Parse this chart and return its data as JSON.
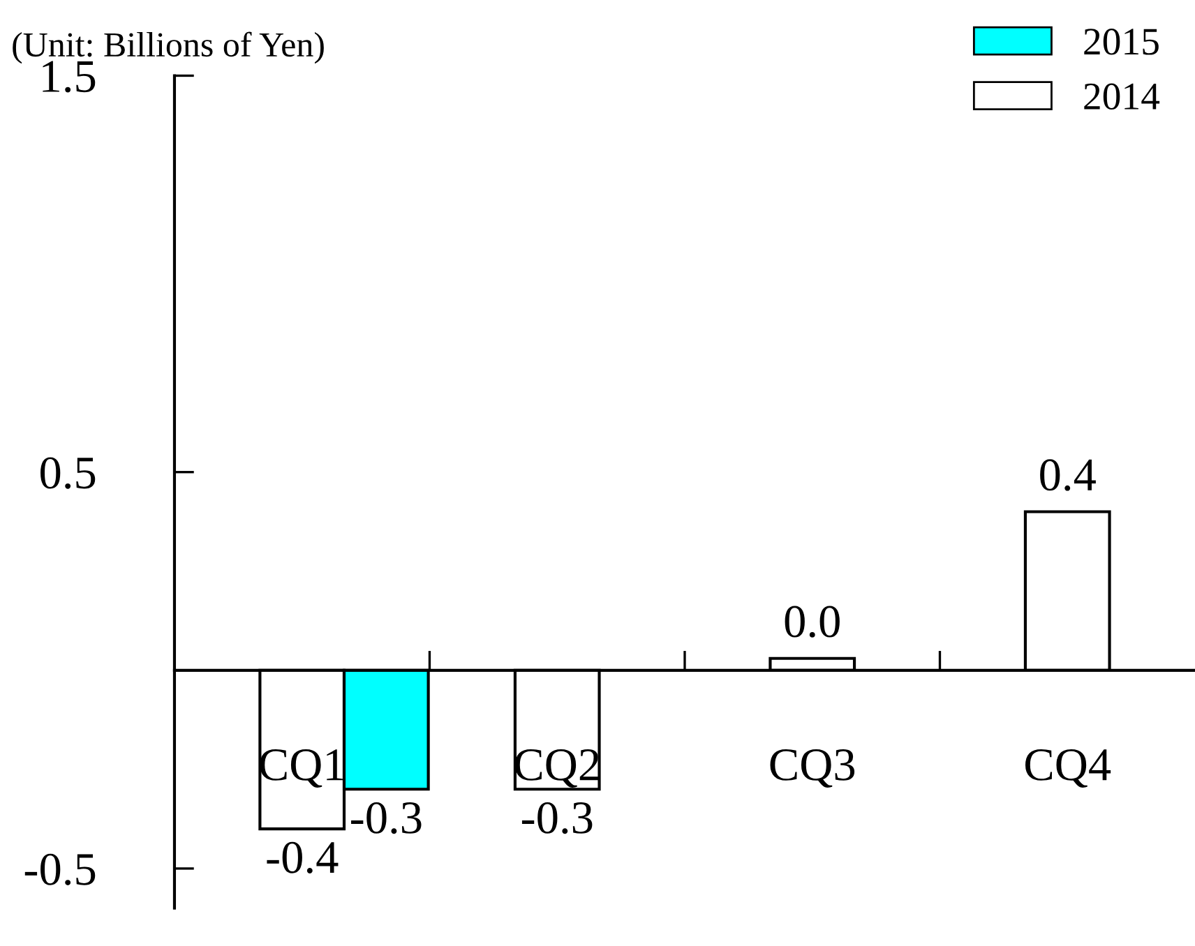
{
  "chart_data": {
    "type": "bar",
    "title": "(Unit: Billions of Yen)",
    "categories": [
      "CQ1",
      "CQ2",
      "CQ3",
      "CQ4"
    ],
    "series": [
      {
        "name": "2014",
        "color": "#ffffff",
        "values": [
          -0.4,
          -0.3,
          0.03,
          0.4
        ],
        "value_labels": [
          "-0.4",
          "-0.3",
          "0.0",
          "0.4"
        ]
      },
      {
        "name": "2015",
        "color": "#00ffff",
        "values": [
          -0.3,
          null,
          null,
          null
        ],
        "value_labels": [
          "-0.3",
          null,
          null,
          null
        ]
      }
    ],
    "ylim": [
      -0.6,
      1.5
    ],
    "yticks": [
      -0.5,
      0.5,
      1.5
    ],
    "grid": false,
    "legend": "top right"
  }
}
